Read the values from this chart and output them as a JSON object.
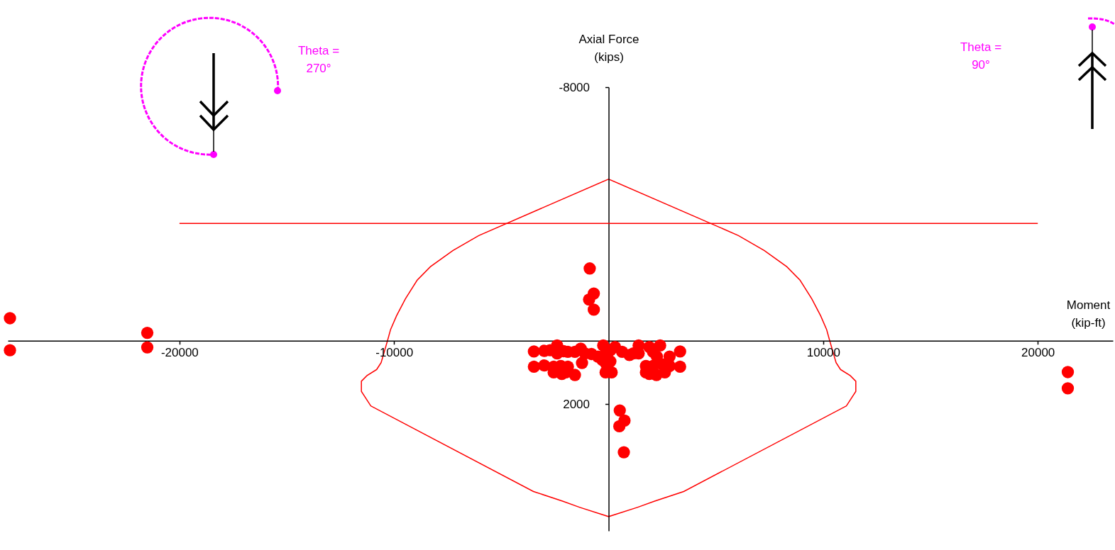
{
  "chart_data": {
    "type": "scatter",
    "xlabel": "Moment\n(kip-ft)",
    "ylabel": "Axial Force\n(kips)",
    "annotations": [
      "Theta =\n270°",
      "Theta =\n90°"
    ],
    "xlim": [
      -28000,
      23500
    ],
    "xticks": [
      -20000,
      -10000,
      10000,
      20000
    ],
    "ylim": [
      6000,
      -8000
    ],
    "yticks": [
      -8000,
      2000
    ],
    "ref_lines": [
      {
        "axis": "y",
        "value": -3700,
        "color": "#ff0000"
      }
    ],
    "series": [
      {
        "color": "#ff0000",
        "marker": "circle",
        "x": [
          -27900,
          -27900,
          -21500,
          -21500,
          21400,
          21400,
          -880,
          -690,
          -910,
          -690,
          520,
          740,
          500,
          710,
          -3480,
          -3480,
          -3000,
          -3000,
          -2730,
          -2560,
          -2560,
          -2400,
          -2400,
          -2230,
          -2180,
          -1900,
          -1900,
          -1570,
          -1570,
          -1300,
          -1240,
          -800,
          -250,
          -140,
          -300,
          -140,
          80,
          80,
          -140,
          140,
          630,
          970,
          1400,
          1400,
          1740,
          1740,
          2070,
          2070,
          2230,
          2400,
          2510,
          2620,
          2840,
          2840,
          3330,
          3330,
          -2100,
          -1100,
          -500,
          300,
          1150,
          1900,
          2250,
          -2000,
          1900
        ],
        "values": [
          -710,
          300,
          -250,
          210,
          990,
          1500,
          -2280,
          -1490,
          -1300,
          -980,
          2200,
          2520,
          2700,
          3520,
          340,
          820,
          320,
          780,
          300,
          820,
          1000,
          150,
          400,
          800,
          1050,
          350,
          820,
          350,
          1080,
          250,
          700,
          420,
          150,
          400,
          600,
          700,
          300,
          650,
          1000,
          1000,
          350,
          450,
          150,
          400,
          800,
          1000,
          350,
          800,
          1080,
          150,
          750,
          1000,
          500,
          800,
          340,
          820,
          330,
          400,
          500,
          200,
          400,
          200,
          500,
          1000,
          1050
        ]
      }
    ]
  }
}
